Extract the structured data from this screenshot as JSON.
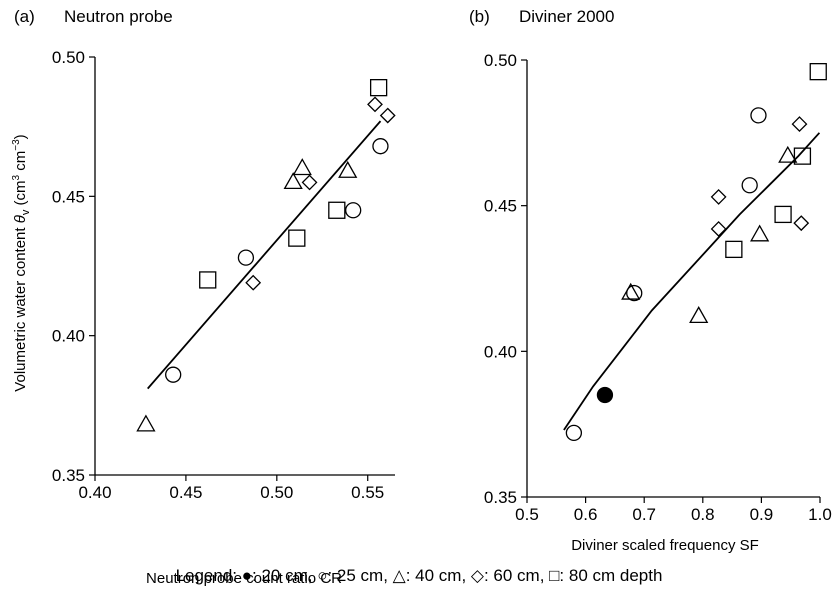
{
  "chart_data": [
    {
      "type": "scatter",
      "panel_label": "(a)",
      "title": "Neutron probe",
      "xlabel": "Neutron probe count ratio CR",
      "ylabel": "Volumetric water content θv (cm³ cm⁻³)",
      "ylabel_parts": {
        "pre": "Volumetric water content ",
        "theta": "θ",
        "sub": "v",
        "mid": " (cm",
        "sup1": "3",
        "mid2": " cm",
        "sup2": "−3",
        "end": ")"
      },
      "xlim": [
        0.4,
        0.565
      ],
      "ylim": [
        0.35,
        0.5
      ],
      "x_ticks": [
        "0.40",
        "0.45",
        "0.50",
        "0.55"
      ],
      "x_tick_values": [
        0.4,
        0.45,
        0.5,
        0.55
      ],
      "y_ticks": [
        "0.35",
        "0.40",
        "0.45",
        "0.50"
      ],
      "y_tick_values": [
        0.35,
        0.4,
        0.45,
        0.5
      ],
      "fit_line": {
        "x": [
          0.429,
          0.557
        ],
        "y": [
          0.381,
          0.477
        ]
      },
      "series": [
        {
          "name": "20 cm",
          "marker": "filled-circle",
          "points": []
        },
        {
          "name": "25 cm",
          "marker": "circle",
          "points": [
            [
              0.443,
              0.386
            ],
            [
              0.483,
              0.428
            ],
            [
              0.542,
              0.445
            ],
            [
              0.557,
              0.468
            ]
          ]
        },
        {
          "name": "40 cm",
          "marker": "triangle",
          "points": [
            [
              0.428,
              0.368
            ],
            [
              0.509,
              0.455
            ],
            [
              0.514,
              0.46
            ],
            [
              0.539,
              0.459
            ]
          ]
        },
        {
          "name": "60 cm",
          "marker": "diamond",
          "points": [
            [
              0.487,
              0.419
            ],
            [
              0.518,
              0.455
            ],
            [
              0.554,
              0.483
            ],
            [
              0.561,
              0.479
            ]
          ]
        },
        {
          "name": "80 cm",
          "marker": "square",
          "points": [
            [
              0.462,
              0.42
            ],
            [
              0.511,
              0.435
            ],
            [
              0.533,
              0.445
            ],
            [
              0.556,
              0.489
            ]
          ]
        }
      ]
    },
    {
      "type": "scatter",
      "panel_label": "(b)",
      "title": "Diviner 2000",
      "xlabel": "Diviner scaled frequency SF",
      "ylabel": "",
      "xlim": [
        0.5,
        1.0
      ],
      "ylim": [
        0.35,
        0.5
      ],
      "x_ticks": [
        "0.5",
        "0.6",
        "0.7",
        "0.8",
        "0.9",
        "1.0"
      ],
      "x_tick_values": [
        0.5,
        0.6,
        0.7,
        0.8,
        0.9,
        1.0
      ],
      "y_ticks": [
        "0.35",
        "0.40",
        "0.45",
        "0.50"
      ],
      "y_tick_values": [
        0.35,
        0.4,
        0.45,
        0.5
      ],
      "fit_line": {
        "x": [
          0.563,
          0.613,
          0.663,
          0.713,
          0.763,
          0.813,
          0.863,
          0.913,
          0.963,
          0.999
        ],
        "y": [
          0.373,
          0.388,
          0.401,
          0.414,
          0.425,
          0.436,
          0.447,
          0.457,
          0.467,
          0.475
        ]
      },
      "series": [
        {
          "name": "20 cm",
          "marker": "filled-circle",
          "points": [
            [
              0.633,
              0.385
            ]
          ]
        },
        {
          "name": "25 cm",
          "marker": "circle",
          "points": [
            [
              0.58,
              0.372
            ],
            [
              0.683,
              0.42
            ],
            [
              0.88,
              0.457
            ],
            [
              0.895,
              0.481
            ]
          ]
        },
        {
          "name": "40 cm",
          "marker": "triangle",
          "points": [
            [
              0.677,
              0.42
            ],
            [
              0.793,
              0.412
            ],
            [
              0.897,
              0.44
            ],
            [
              0.945,
              0.467
            ]
          ]
        },
        {
          "name": "60 cm",
          "marker": "diamond",
          "points": [
            [
              0.827,
              0.453
            ],
            [
              0.827,
              0.442
            ],
            [
              0.965,
              0.478
            ],
            [
              0.968,
              0.444
            ]
          ]
        },
        {
          "name": "80 cm",
          "marker": "square",
          "points": [
            [
              0.853,
              0.435
            ],
            [
              0.937,
              0.447
            ],
            [
              0.97,
              0.467
            ],
            [
              0.997,
              0.496
            ]
          ]
        }
      ]
    }
  ],
  "legend": {
    "text": "Legend: ●: 20 cm, ○: 25 cm, △: 40 cm, ◇: 60 cm, □: 80 cm depth"
  }
}
